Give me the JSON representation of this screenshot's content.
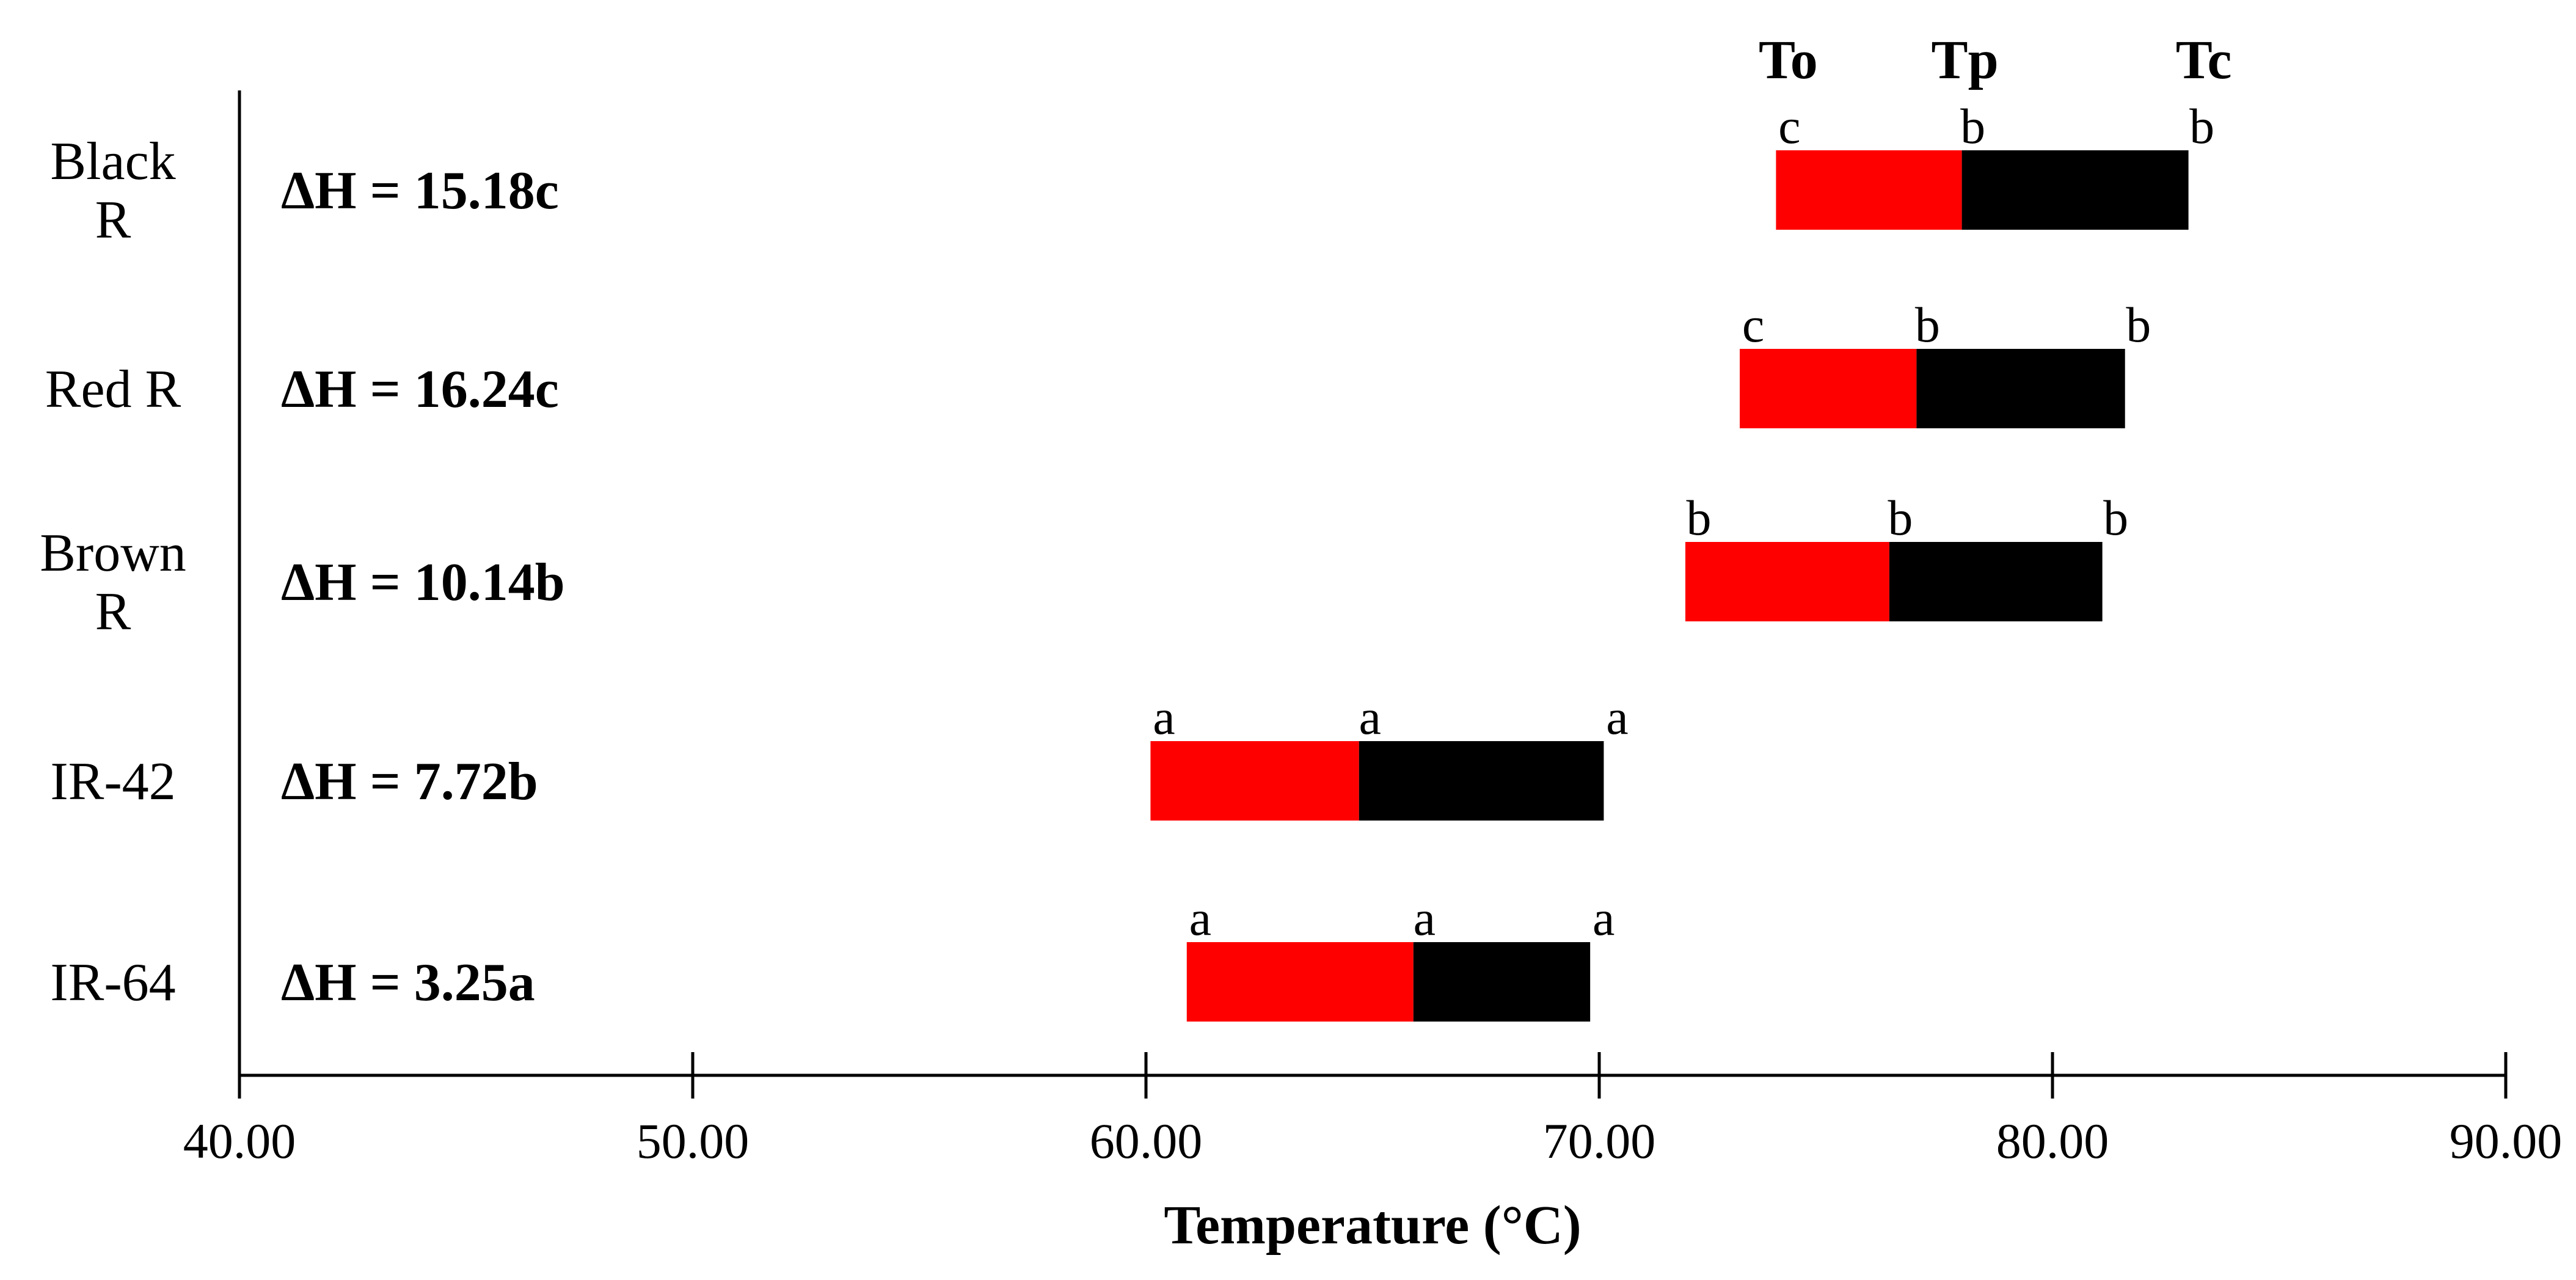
{
  "chart_data": {
    "type": "bar",
    "orientation": "horizontal-floating",
    "title": "",
    "xlabel": "Temperature (°C)",
    "ylabel": "",
    "xlim": [
      40,
      90
    ],
    "xticks": [
      40,
      50,
      60,
      70,
      80,
      90
    ],
    "xtick_labels": [
      "40.00",
      "50.00",
      "60.00",
      "70.00",
      "80.00",
      "90.00"
    ],
    "column_headers": {
      "to": "To",
      "tp": "Tp",
      "tc": "Tc"
    },
    "colors": {
      "to_to_tp": "#ff0000",
      "tp_to_tc": "#000000"
    },
    "categories": [
      {
        "name_lines": [
          "Black",
          "R"
        ],
        "dh_label": "ΔH = 15.18c",
        "to": 73.9,
        "tp": 78.0,
        "tc": 83.0,
        "letters": {
          "to": "c",
          "tp": "b",
          "tc": "b"
        }
      },
      {
        "name_lines": [
          "Red R"
        ],
        "dh_label": "ΔH = 16.24c",
        "to": 73.1,
        "tp": 77.0,
        "tc": 81.6,
        "letters": {
          "to": "c",
          "tp": "b",
          "tc": "b"
        }
      },
      {
        "name_lines": [
          "Brown",
          "R"
        ],
        "dh_label": "ΔH = 10.14b",
        "to": 71.9,
        "tp": 76.4,
        "tc": 81.1,
        "letters": {
          "to": "b",
          "tp": "b",
          "tc": "b"
        }
      },
      {
        "name_lines": [
          "IR-42"
        ],
        "dh_label": "ΔH = 7.72b",
        "to": 60.1,
        "tp": 64.7,
        "tc": 70.1,
        "letters": {
          "to": "a",
          "tp": "a",
          "tc": "a"
        }
      },
      {
        "name_lines": [
          "IR-64"
        ],
        "dh_label": "ΔH = 3.25a",
        "to": 60.9,
        "tp": 65.9,
        "tc": 69.8,
        "letters": {
          "to": "a",
          "tp": "a",
          "tc": "a"
        }
      }
    ]
  }
}
